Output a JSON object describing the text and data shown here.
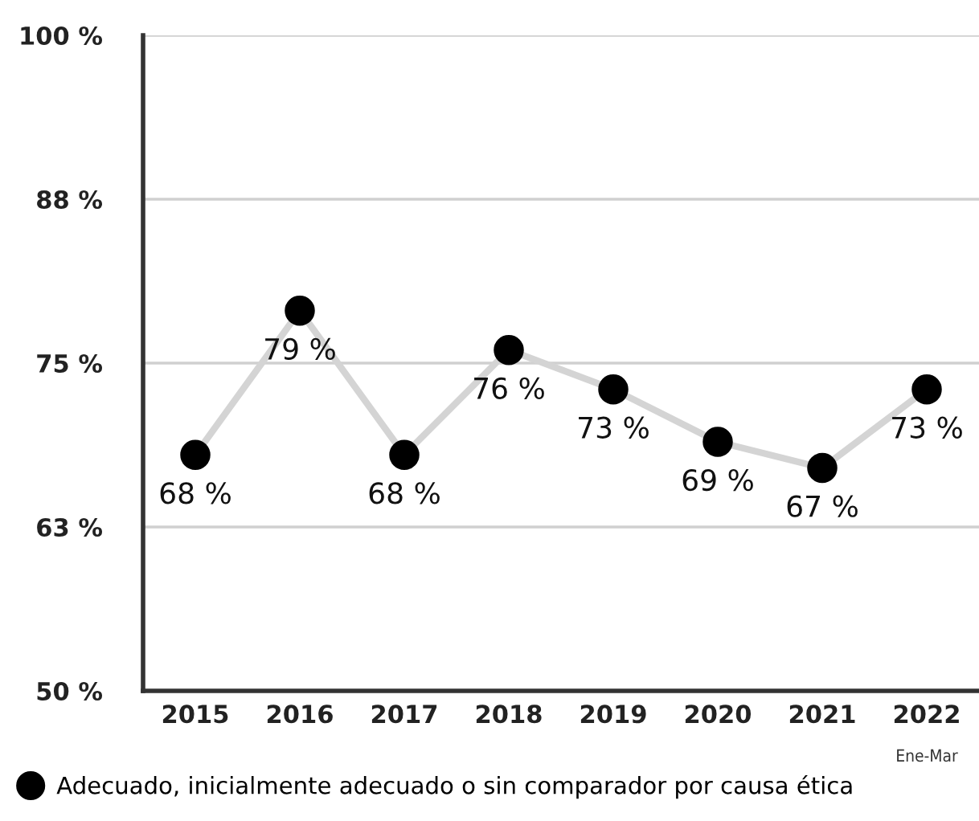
{
  "chart_data": {
    "type": "line",
    "categories": [
      "2015",
      "2016",
      "2017",
      "2018",
      "2019",
      "2020",
      "2021",
      "2022"
    ],
    "series": [
      {
        "name": "Adecuado, inicialmente adecuado o sin comparador por causa ética",
        "color": "#d4d4d4",
        "colors": [
          "#000000",
          "#000000",
          "#000000",
          "#000000",
          "#000000",
          "#000000",
          "#000000",
          "#000000"
        ],
        "values": [
          68,
          79,
          68,
          76,
          73,
          69,
          67,
          73
        ],
        "value_labels": [
          "68 %",
          "79 %",
          "68 %",
          "76 %",
          "73 %",
          "69 %",
          "67 %",
          "73 %"
        ]
      }
    ],
    "ylim": [
      50,
      100
    ],
    "yticks": [
      {
        "value": 50,
        "label": "50 %"
      },
      {
        "value": 62.5,
        "label": "63 %"
      },
      {
        "value": 75,
        "label": "75 %"
      },
      {
        "value": 87.5,
        "label": "88 %"
      },
      {
        "value": 100,
        "label": "100 %"
      }
    ],
    "grid": "y",
    "legend": "bottom",
    "marker": "circle",
    "line_style": "solid",
    "annotations": [
      "Ene-Mar"
    ]
  }
}
